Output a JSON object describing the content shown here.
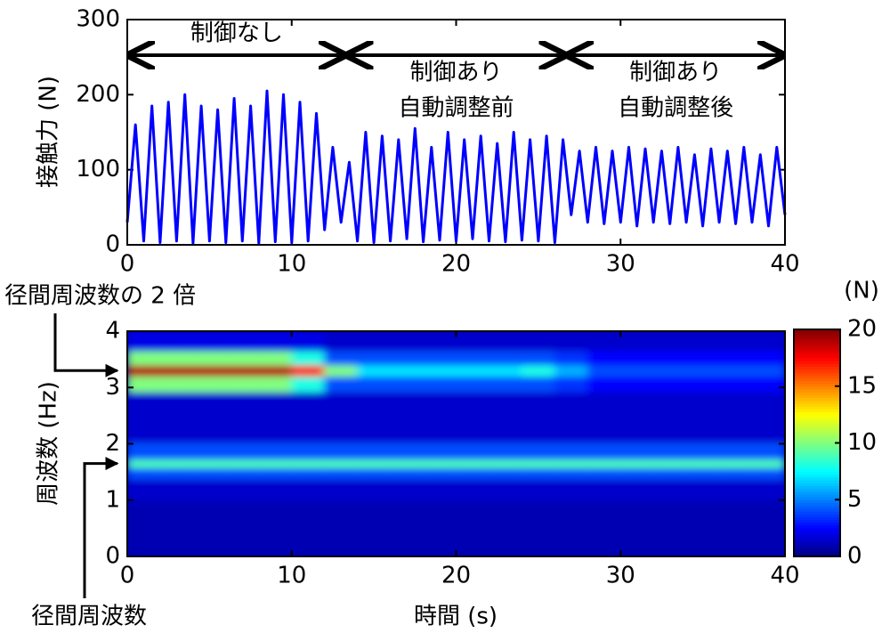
{
  "chart_data": [
    {
      "type": "line",
      "ylabel": "接触力 (N)",
      "xlim": [
        0,
        40
      ],
      "xticks": [
        0,
        10,
        20,
        30,
        40
      ],
      "ylim": [
        0,
        300
      ],
      "yticks": [
        0,
        100,
        200,
        300
      ],
      "x": [
        0,
        0.5,
        1,
        1.5,
        2,
        2.5,
        3,
        3.5,
        4,
        4.5,
        5,
        5.5,
        6,
        6.5,
        7,
        7.5,
        8,
        8.5,
        9,
        9.5,
        10,
        10.5,
        11,
        11.5,
        12,
        12.5,
        13,
        13.5,
        14,
        14.5,
        15,
        15.5,
        16,
        16.5,
        17,
        17.5,
        18,
        18.5,
        19,
        19.5,
        20,
        20.5,
        21,
        21.5,
        22,
        22.5,
        23,
        23.5,
        24,
        24.5,
        25,
        25.5,
        26,
        26.5,
        27,
        27.5,
        28,
        28.5,
        29,
        29.5,
        30,
        30.5,
        31,
        31.5,
        32,
        32.5,
        33,
        33.5,
        34,
        34.5,
        35,
        35.5,
        36,
        36.5,
        37,
        37.5,
        38,
        38.5,
        39,
        39.5,
        40
      ],
      "series": [
        {
          "color": "#0000ff",
          "values": [
            30,
            160,
            5,
            185,
            3,
            190,
            5,
            200,
            2,
            185,
            5,
            180,
            3,
            195,
            5,
            185,
            2,
            205,
            4,
            200,
            3,
            190,
            5,
            175,
            20,
            130,
            30,
            110,
            5,
            150,
            3,
            145,
            5,
            140,
            8,
            155,
            4,
            130,
            6,
            150,
            5,
            140,
            8,
            145,
            5,
            135,
            4,
            150,
            6,
            140,
            5,
            145,
            3,
            140,
            40,
            125,
            30,
            130,
            28,
            125,
            30,
            130,
            25,
            128,
            30,
            125,
            28,
            130,
            30,
            120,
            25,
            128,
            30,
            125,
            28,
            130,
            30,
            120,
            25,
            130,
            40
          ]
        }
      ],
      "annotations": [
        {
          "label": [
            "制御なし"
          ],
          "span": [
            0,
            13.3
          ]
        },
        {
          "label": [
            "制御あり",
            "自動調整前"
          ],
          "span": [
            13.3,
            26.7
          ]
        },
        {
          "label": [
            "制御あり",
            "自動調整後"
          ],
          "span": [
            26.7,
            40
          ]
        }
      ]
    },
    {
      "type": "heatmap",
      "xlabel": "時間 (s)",
      "ylabel": "周波数 (Hz)",
      "xlim": [
        0,
        40
      ],
      "xticks": [
        0,
        10,
        20,
        30,
        40
      ],
      "ylim": [
        0,
        4
      ],
      "yticks": [
        0,
        1,
        2,
        3,
        4
      ],
      "colormap": "jet",
      "clim": [
        0,
        20
      ],
      "cticks": [
        0,
        5,
        10,
        15,
        20
      ],
      "clabel": "(N)",
      "x": [
        1,
        3,
        5,
        7,
        9,
        11,
        13,
        15,
        17,
        19,
        21,
        23,
        25,
        27,
        29,
        31,
        33,
        35,
        37,
        39
      ],
      "y": [
        0.25,
        0.75,
        1.25,
        1.5,
        1.65,
        1.8,
        2.25,
        2.75,
        3.1,
        3.3,
        3.5,
        3.8
      ],
      "z": [
        [
          1,
          1,
          1,
          1,
          1,
          1,
          1,
          1,
          1,
          1,
          1,
          1,
          1,
          1,
          1,
          1,
          1,
          1,
          1,
          1
        ],
        [
          1,
          1,
          1,
          1,
          1,
          1,
          1,
          1,
          1,
          1,
          1,
          1,
          1,
          1,
          1,
          1,
          1,
          1,
          1,
          1
        ],
        [
          1.5,
          1.5,
          1.5,
          1.5,
          1.5,
          1.5,
          1.5,
          1.5,
          1.5,
          1.5,
          1.5,
          1.5,
          1.5,
          1.5,
          1.5,
          1.5,
          1.5,
          1.5,
          1.5,
          1.5
        ],
        [
          4,
          4,
          4,
          4,
          4,
          4,
          4,
          4,
          4,
          4,
          4,
          4,
          4,
          4,
          4,
          4,
          4,
          4,
          4,
          4
        ],
        [
          9,
          9,
          9,
          9,
          9,
          9,
          9,
          9,
          9,
          9,
          9,
          9,
          9,
          9,
          9,
          9,
          9,
          9,
          9,
          9
        ],
        [
          4,
          4,
          4,
          4,
          4,
          4,
          4,
          4,
          4,
          4,
          4,
          4,
          4,
          4,
          4,
          4,
          4,
          4,
          4,
          4
        ],
        [
          1.5,
          1.5,
          1.5,
          1.5,
          1.5,
          1.5,
          1.5,
          1.5,
          1.5,
          1.5,
          1.5,
          1.5,
          1.5,
          1.5,
          1.5,
          1.5,
          1.5,
          1.5,
          1.5,
          1.5
        ],
        [
          1.5,
          1.5,
          1.5,
          1.5,
          1.5,
          1.5,
          1.5,
          1.5,
          1.5,
          1.5,
          1.5,
          1.5,
          1.5,
          1.5,
          1.5,
          1.5,
          1.5,
          1.5,
          1.5,
          1.5
        ],
        [
          10,
          10,
          10,
          10,
          10,
          8,
          4,
          4,
          4,
          4,
          4,
          4,
          4,
          3.5,
          2.5,
          2.5,
          2.5,
          2.5,
          2.5,
          2.5
        ],
        [
          19,
          19,
          19,
          19,
          19,
          17,
          10,
          7,
          7,
          7,
          7,
          7,
          8,
          6,
          4,
          4,
          4,
          4,
          4,
          4
        ],
        [
          10,
          10,
          10,
          10,
          10,
          8,
          4,
          4,
          4,
          4,
          4,
          4,
          4,
          3.5,
          2.5,
          2.5,
          2.5,
          2.5,
          2.5,
          2.5
        ],
        [
          2,
          2,
          2,
          2,
          2,
          2,
          1.5,
          1.5,
          1.5,
          1.5,
          1.5,
          1.5,
          1.5,
          1.5,
          1.5,
          1.5,
          1.5,
          1.5,
          1.5,
          1.5
        ]
      ],
      "annotations": [
        {
          "label": "径間周波数の 2 倍",
          "y": 3.3
        },
        {
          "label": "径間周波数",
          "y": 1.65
        }
      ]
    }
  ]
}
